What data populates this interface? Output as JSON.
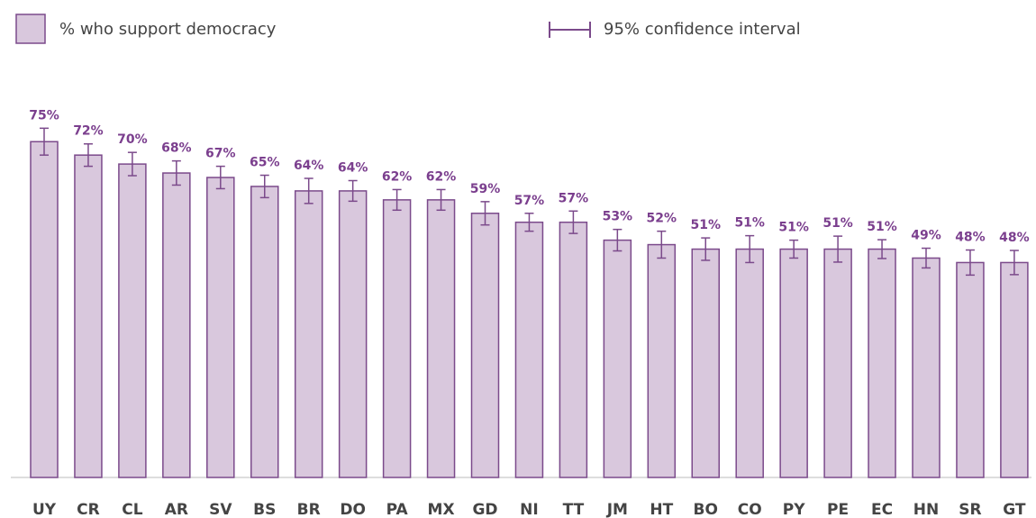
{
  "chart_data": {
    "type": "bar",
    "categories": [
      "UY",
      "CR",
      "CL",
      "AR",
      "SV",
      "BS",
      "BR",
      "DO",
      "PA",
      "MX",
      "GD",
      "NI",
      "TT",
      "JM",
      "HT",
      "BO",
      "CO",
      "PY",
      "PE",
      "EC",
      "HN",
      "SR",
      "GT"
    ],
    "series": [
      {
        "name": "% who support democracy",
        "color": "#d9c8dd",
        "edge_color": "#7b4a8b",
        "values": [
          75,
          72,
          70,
          68,
          67,
          65,
          64,
          64,
          62,
          62,
          59,
          57,
          57,
          53,
          52,
          51,
          51,
          51,
          51,
          51,
          49,
          48,
          48
        ],
        "value_labels": [
          "75%",
          "72%",
          "70%",
          "68%",
          "67%",
          "65%",
          "64%",
          "64%",
          "62%",
          "62%",
          "59%",
          "57%",
          "57%",
          "53%",
          "52%",
          "51%",
          "51%",
          "51%",
          "51%",
          "51%",
          "49%",
          "48%",
          "48%"
        ],
        "errors": [
          3,
          2.5,
          2.6,
          2.7,
          2.5,
          2.5,
          2.8,
          2.3,
          2.3,
          2.3,
          2.6,
          2,
          2.5,
          2.4,
          3,
          2.5,
          3,
          2,
          2.9,
          2.1,
          2.2,
          2.8,
          2.7
        ]
      }
    ],
    "error_label": "95% confidence interval",
    "ylim": [
      0,
      100
    ]
  }
}
